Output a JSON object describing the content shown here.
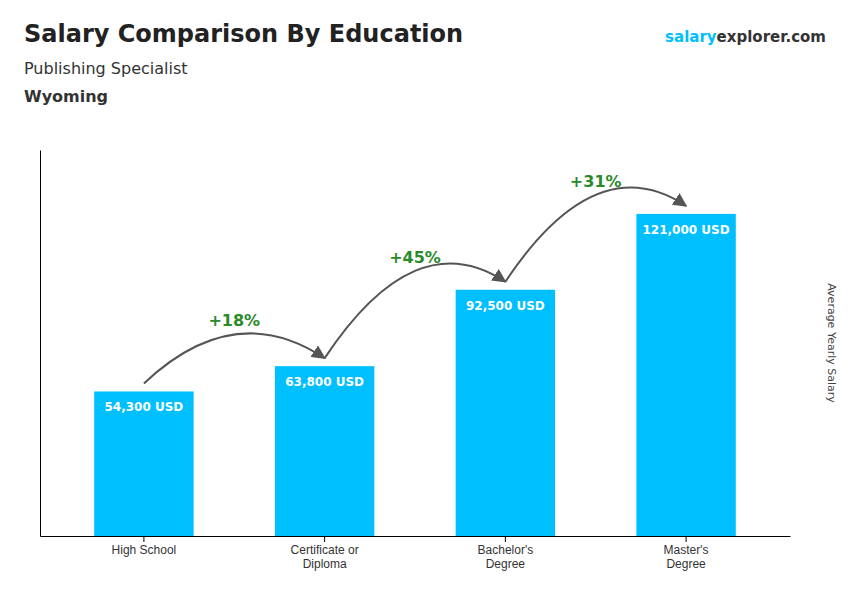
{
  "chart_data": {
    "type": "bar",
    "title": "Salary Comparison By Education",
    "subtitle": "Publishing Specialist",
    "location": "Wyoming",
    "brand": [
      "salary",
      "explorer.com"
    ],
    "ylabel": "Average Yearly Salary",
    "categories": [
      "High School",
      "Certificate or\nDiploma",
      "Bachelor's\nDegree",
      "Master's\nDegree"
    ],
    "values": [
      54300,
      63800,
      92500,
      121000
    ],
    "value_labels": [
      "54,300 USD",
      "63,800 USD",
      "92,500 USD",
      "121,000 USD"
    ],
    "data_labels": true,
    "annotations": [
      "+18%",
      "+45%",
      "+31%"
    ],
    "color": "#00bfff",
    "ylim": [
      0,
      145000
    ],
    "tick_labels": "x",
    "grid": false
  }
}
